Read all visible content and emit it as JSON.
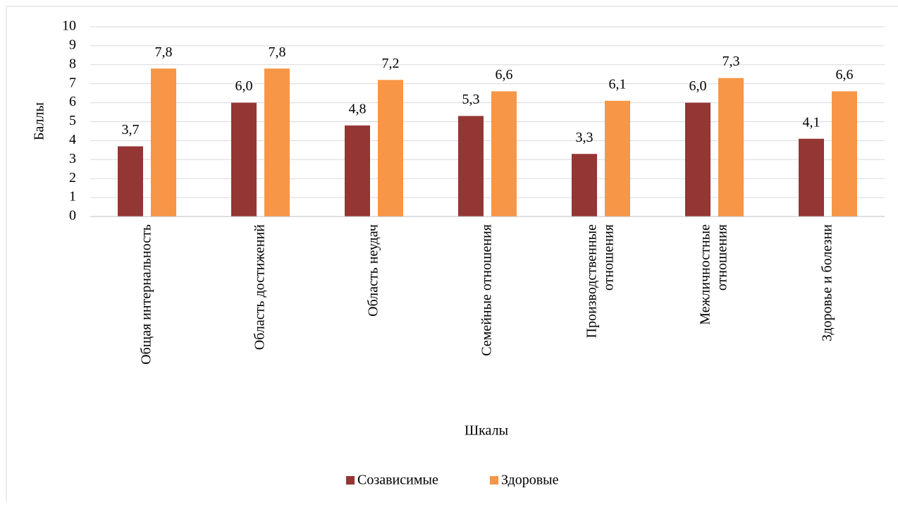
{
  "chart_data": {
    "type": "bar",
    "categories": [
      [
        "Общая интернальность"
      ],
      [
        "Область достижений"
      ],
      [
        "Область неудач"
      ],
      [
        "Семейные отношения"
      ],
      [
        "Производственные",
        "отношения"
      ],
      [
        "Межличностные",
        "отношения"
      ],
      [
        "Здоровье и болезни"
      ]
    ],
    "series": [
      {
        "name": "Созависимые",
        "color": "#943634",
        "values": [
          3.7,
          6.0,
          4.8,
          5.3,
          3.3,
          6.0,
          4.1
        ],
        "value_labels": [
          "3,7",
          "6,0",
          "4,8",
          "5,3",
          "3,3",
          "6,0",
          "4,1"
        ]
      },
      {
        "name": "Здоровые",
        "color": "#f79646",
        "values": [
          7.8,
          7.8,
          7.2,
          6.6,
          6.1,
          7.3,
          6.6
        ],
        "value_labels": [
          "7,8",
          "7,8",
          "7,2",
          "6,6",
          "6,1",
          "7,3",
          "6,6"
        ]
      }
    ],
    "xlabel": "Шкалы",
    "ylabel": "Баллы",
    "ylim": [
      0,
      10
    ],
    "yticks": [
      0,
      1,
      2,
      3,
      4,
      5,
      6,
      7,
      8,
      9,
      10
    ],
    "grid": true,
    "legend": "bottom"
  }
}
